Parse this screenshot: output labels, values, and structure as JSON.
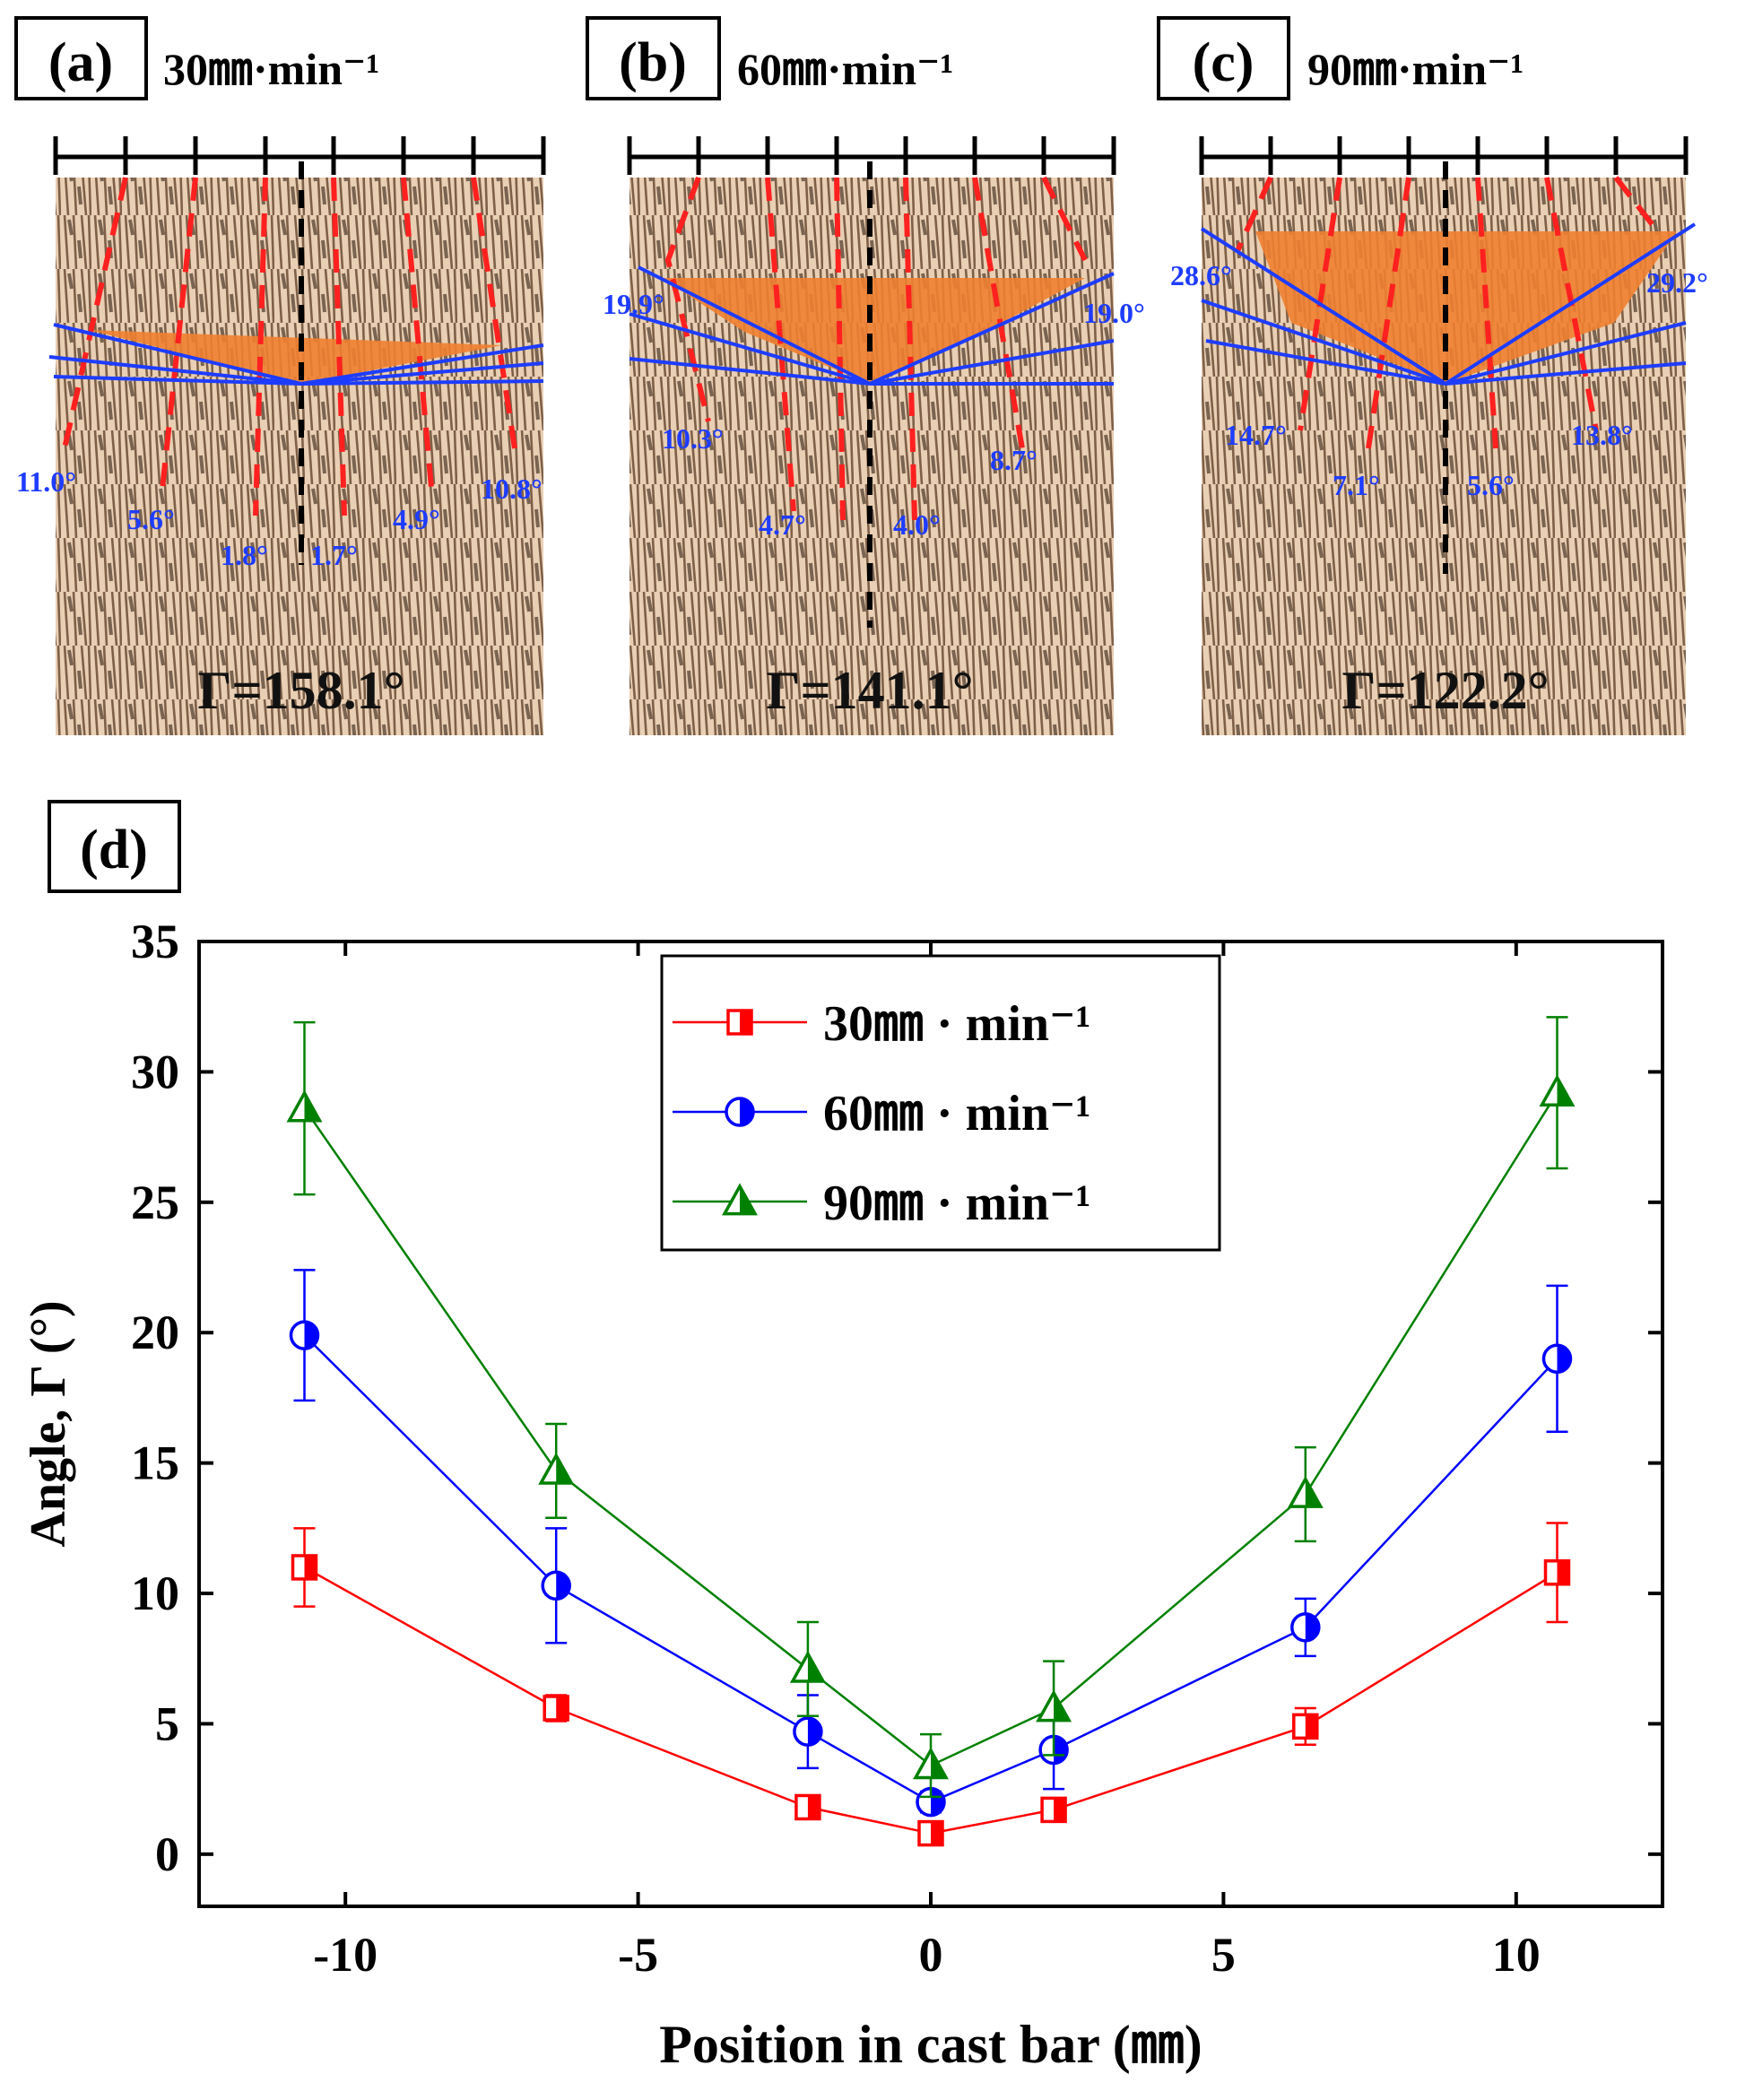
{
  "panels": [
    {
      "label": "(a)",
      "speed_label": "30㎜·min⁻¹",
      "gamma_label": "Γ=158.1°",
      "angles": [
        {
          "text": "11.0°"
        },
        {
          "text": "5.6°"
        },
        {
          "text": "1.8°"
        },
        {
          "text": "1.7°"
        },
        {
          "text": "4.9°"
        },
        {
          "text": "10.8°"
        }
      ]
    },
    {
      "label": "(b)",
      "speed_label": "60㎜·min⁻¹",
      "gamma_label": "Γ=141.1°",
      "angles": [
        {
          "text": "19.9°"
        },
        {
          "text": "10.3°"
        },
        {
          "text": "4.7°"
        },
        {
          "text": "4.0°"
        },
        {
          "text": "8.7°"
        },
        {
          "text": "19.0°"
        }
      ]
    },
    {
      "label": "(c)",
      "speed_label": "90㎜·min⁻¹",
      "gamma_label": "Γ=122.2°",
      "angles": [
        {
          "text": "28.6°"
        },
        {
          "text": "14.7°"
        },
        {
          "text": "7.1°"
        },
        {
          "text": "5.6°"
        },
        {
          "text": "13.8°"
        },
        {
          "text": "29.2°"
        }
      ]
    }
  ],
  "chart_data": {
    "type": "line",
    "panel_label": "(d)",
    "title": "",
    "xlabel": "Position in cast bar (㎜)",
    "ylabel": "Angle, Γ (°)",
    "xlim": [
      -12.5,
      12.5
    ],
    "ylim": [
      -2,
      35
    ],
    "xticks": [
      -10,
      -5,
      0,
      5,
      10
    ],
    "yticks": [
      0,
      5,
      10,
      15,
      20,
      25,
      30,
      35
    ],
    "grid": false,
    "legend_position": "top-center",
    "x": [
      -10.7,
      -6.4,
      -2.1,
      0,
      2.1,
      6.4,
      10.7
    ],
    "series": [
      {
        "name": "30㎜ · min⁻¹",
        "color": "#ff0000",
        "marker": "square-half",
        "values": [
          11.0,
          5.6,
          1.8,
          0.8,
          1.7,
          4.9,
          10.8
        ],
        "errors": [
          1.5,
          0.5,
          0.3,
          0.3,
          0.3,
          0.7,
          1.9
        ]
      },
      {
        "name": "60㎜ · min⁻¹",
        "color": "#0000ff",
        "marker": "circle-half",
        "values": [
          19.9,
          10.3,
          4.7,
          2.0,
          4.0,
          8.7,
          19.0
        ],
        "errors": [
          2.5,
          2.2,
          1.4,
          0.4,
          1.5,
          1.1,
          2.8
        ]
      },
      {
        "name": "90㎜ · min⁻¹",
        "color": "#008000",
        "marker": "triangle-half",
        "values": [
          28.6,
          14.7,
          7.1,
          3.4,
          5.6,
          13.8,
          29.2
        ],
        "errors": [
          3.3,
          1.8,
          1.8,
          1.2,
          1.8,
          1.8,
          2.9
        ]
      }
    ]
  }
}
